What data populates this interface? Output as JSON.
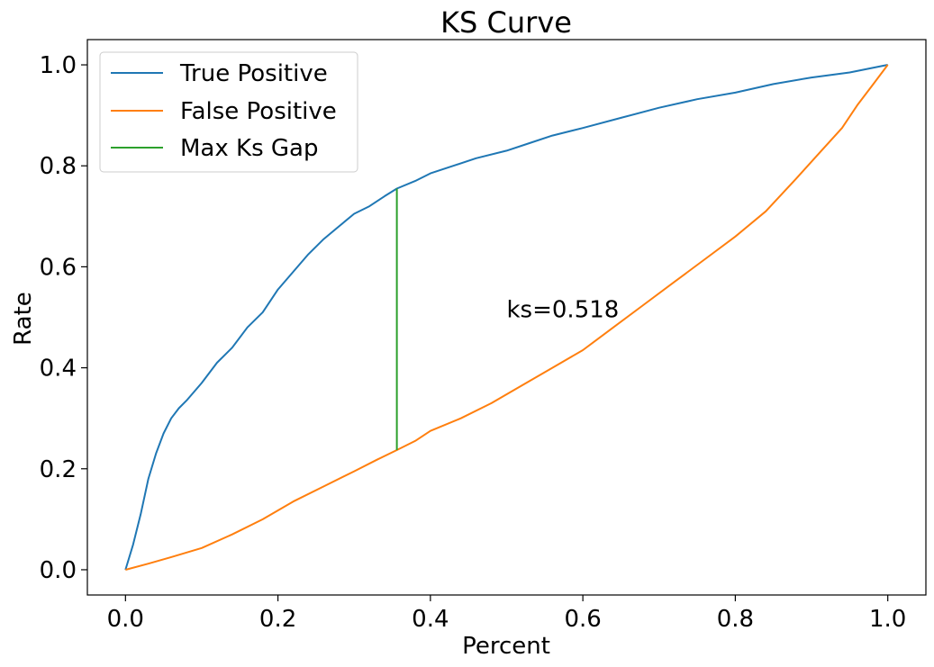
{
  "chart_data": {
    "type": "line",
    "title": "KS Curve",
    "xlabel": "Percent",
    "ylabel": "Rate",
    "xlim": [
      -0.05,
      1.05
    ],
    "ylim": [
      -0.05,
      1.05
    ],
    "x_ticks": [
      0.0,
      0.2,
      0.4,
      0.6,
      0.8,
      1.0
    ],
    "x_tick_labels": [
      "0.0",
      "0.2",
      "0.4",
      "0.6",
      "0.8",
      "1.0"
    ],
    "y_ticks": [
      0.0,
      0.2,
      0.4,
      0.6,
      0.8,
      1.0
    ],
    "y_tick_labels": [
      "0.0",
      "0.2",
      "0.4",
      "0.6",
      "0.8",
      "1.0"
    ],
    "grid": false,
    "legend_position": "top-left",
    "series": [
      {
        "name": "True Positive",
        "color": "#1f77b4",
        "x": [
          0.0,
          0.01,
          0.02,
          0.03,
          0.04,
          0.05,
          0.06,
          0.07,
          0.08,
          0.1,
          0.12,
          0.14,
          0.16,
          0.18,
          0.2,
          0.22,
          0.24,
          0.26,
          0.28,
          0.3,
          0.32,
          0.34,
          0.356,
          0.38,
          0.4,
          0.43,
          0.46,
          0.5,
          0.53,
          0.56,
          0.6,
          0.65,
          0.7,
          0.75,
          0.8,
          0.85,
          0.9,
          0.95,
          1.0
        ],
        "y": [
          0.0,
          0.05,
          0.11,
          0.18,
          0.23,
          0.27,
          0.3,
          0.32,
          0.335,
          0.37,
          0.41,
          0.44,
          0.48,
          0.51,
          0.555,
          0.59,
          0.625,
          0.655,
          0.68,
          0.705,
          0.72,
          0.74,
          0.755,
          0.77,
          0.785,
          0.8,
          0.815,
          0.83,
          0.845,
          0.86,
          0.875,
          0.895,
          0.915,
          0.932,
          0.945,
          0.962,
          0.975,
          0.985,
          1.0
        ]
      },
      {
        "name": "False Positive",
        "color": "#ff7f0e",
        "x": [
          0.0,
          0.03,
          0.06,
          0.1,
          0.14,
          0.18,
          0.22,
          0.26,
          0.3,
          0.33,
          0.356,
          0.38,
          0.4,
          0.44,
          0.48,
          0.52,
          0.56,
          0.6,
          0.64,
          0.68,
          0.72,
          0.76,
          0.8,
          0.84,
          0.88,
          0.91,
          0.94,
          0.96,
          0.98,
          1.0
        ],
        "y": [
          0.0,
          0.012,
          0.025,
          0.043,
          0.07,
          0.1,
          0.135,
          0.165,
          0.195,
          0.218,
          0.237,
          0.255,
          0.275,
          0.3,
          0.33,
          0.365,
          0.4,
          0.435,
          0.48,
          0.525,
          0.57,
          0.615,
          0.66,
          0.71,
          0.775,
          0.825,
          0.875,
          0.92,
          0.96,
          1.0
        ]
      }
    ],
    "max_gap": {
      "name": "Max Ks Gap",
      "color": "#2ca02c",
      "x": 0.356,
      "y_low": 0.237,
      "y_high": 0.755
    },
    "annotation": {
      "text": "ks=0.518",
      "x": 0.5,
      "y": 0.5
    }
  }
}
